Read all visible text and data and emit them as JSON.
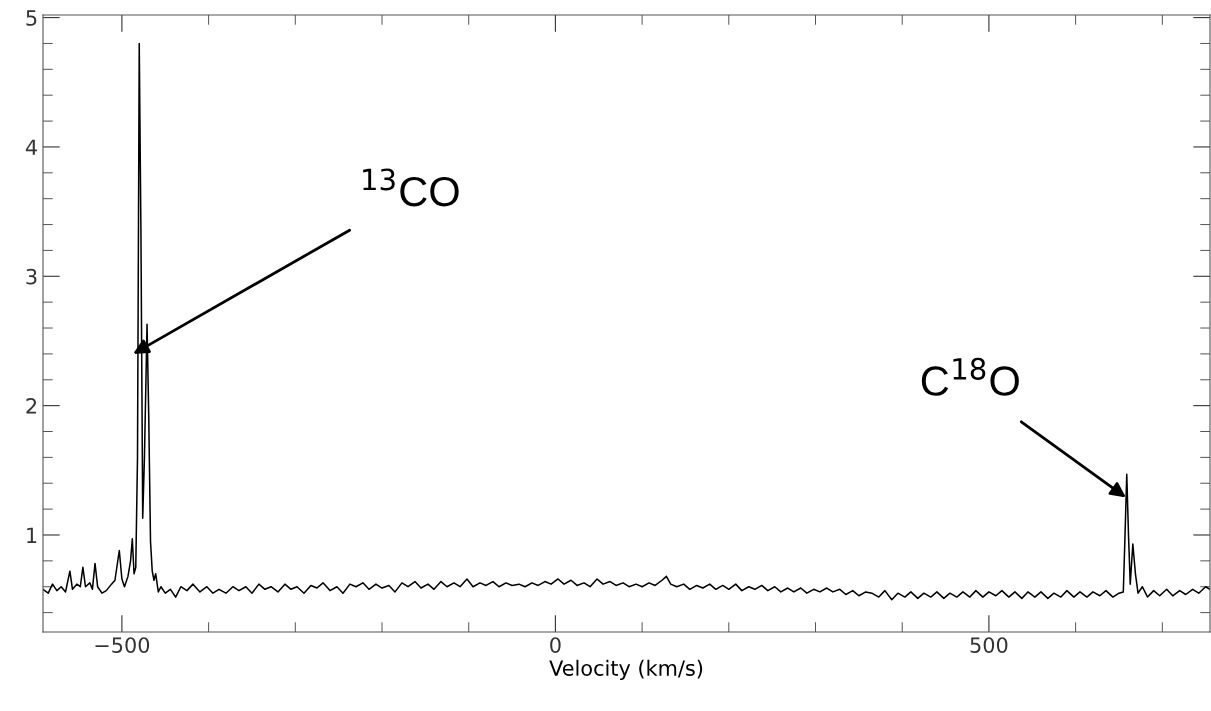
{
  "chart_data": {
    "type": "line",
    "xlabel": "Velocity (km/s)",
    "xlim": [
      -591,
      755
    ],
    "ylim": [
      0.25,
      5.02
    ],
    "xticks": [
      {
        "value": -500,
        "label": "−500"
      },
      0,
      500,
      {
        "value": -400,
        "label": null
      },
      {
        "value": -300,
        "label": null
      },
      {
        "value": -200,
        "label": null
      },
      {
        "value": -100,
        "label": null
      },
      {
        "value": 100,
        "label": null
      },
      {
        "value": 200,
        "label": null
      },
      {
        "value": 300,
        "label": null
      },
      {
        "value": 400,
        "label": null
      },
      {
        "value": 600,
        "label": null
      },
      {
        "value": 700,
        "label": null
      }
    ],
    "yticks": [
      1,
      2,
      3,
      4,
      5,
      {
        "value": 0.4,
        "label": null
      },
      {
        "value": 0.6,
        "label": null
      },
      {
        "value": 0.8,
        "label": null
      },
      {
        "value": 1.2,
        "label": null
      },
      {
        "value": 1.4,
        "label": null
      },
      {
        "value": 1.6,
        "label": null
      },
      {
        "value": 1.8,
        "label": null
      },
      {
        "value": 2.2,
        "label": null
      },
      {
        "value": 2.4,
        "label": null
      },
      {
        "value": 2.6,
        "label": null
      },
      {
        "value": 2.8,
        "label": null
      },
      {
        "value": 3.2,
        "label": null
      },
      {
        "value": 3.4,
        "label": null
      },
      {
        "value": 3.6,
        "label": null
      },
      {
        "value": 3.8,
        "label": null
      },
      {
        "value": 4.2,
        "label": null
      },
      {
        "value": 4.4,
        "label": null
      },
      {
        "value": 4.6,
        "label": null
      },
      {
        "value": 4.8,
        "label": null
      }
    ],
    "x": [
      -591,
      -585,
      -580,
      -575,
      -570,
      -565,
      -560,
      -557,
      -552,
      -548,
      -545,
      -542,
      -537,
      -534,
      -531,
      -528,
      -523,
      -518,
      -512,
      -508,
      -503,
      -500,
      -497,
      -493,
      -490,
      -488,
      -486,
      -484,
      -482,
      -480,
      -478,
      -476,
      -474,
      -471,
      -469,
      -467,
      -465,
      -463,
      -461,
      -458,
      -455,
      -450,
      -444,
      -438,
      -432,
      -425,
      -418,
      -410,
      -402,
      -395,
      -388,
      -380,
      -372,
      -365,
      -357,
      -350,
      -342,
      -335,
      -328,
      -320,
      -312,
      -305,
      -298,
      -290,
      -282,
      -275,
      -268,
      -260,
      -252,
      -245,
      -237,
      -230,
      -222,
      -215,
      -207,
      -200,
      -192,
      -185,
      -177,
      -170,
      -162,
      -155,
      -147,
      -140,
      -132,
      -125,
      -117,
      -110,
      -102,
      -95,
      -87,
      -80,
      -72,
      -65,
      -57,
      -50,
      -42,
      -35,
      -27,
      -20,
      -12,
      -5,
      3,
      10,
      18,
      25,
      33,
      40,
      48,
      55,
      63,
      70,
      78,
      85,
      93,
      100,
      108,
      115,
      123,
      128,
      133,
      140,
      148,
      155,
      163,
      170,
      178,
      185,
      193,
      200,
      208,
      215,
      223,
      230,
      238,
      245,
      253,
      260,
      268,
      275,
      283,
      290,
      298,
      305,
      313,
      320,
      328,
      335,
      343,
      350,
      358,
      365,
      373,
      380,
      388,
      395,
      403,
      410,
      418,
      425,
      433,
      440,
      448,
      455,
      463,
      470,
      478,
      485,
      493,
      500,
      508,
      515,
      523,
      530,
      538,
      545,
      553,
      560,
      568,
      575,
      583,
      590,
      598,
      605,
      613,
      620,
      628,
      635,
      643,
      650,
      655,
      657,
      659,
      661,
      663,
      666,
      669,
      672,
      677,
      683,
      690,
      697,
      705,
      712,
      720,
      727,
      735,
      742,
      750,
      755
    ],
    "series": [
      {
        "color": "#000000",
        "values": [
          0.58,
          0.55,
          0.62,
          0.57,
          0.6,
          0.56,
          0.72,
          0.58,
          0.62,
          0.6,
          0.75,
          0.6,
          0.63,
          0.58,
          0.78,
          0.6,
          0.55,
          0.57,
          0.62,
          0.65,
          0.88,
          0.66,
          0.6,
          0.68,
          0.8,
          0.97,
          0.7,
          0.75,
          1.6,
          4.8,
          3.3,
          1.13,
          1.6,
          2.63,
          1.9,
          0.95,
          0.72,
          0.65,
          0.7,
          0.56,
          0.6,
          0.55,
          0.58,
          0.52,
          0.6,
          0.57,
          0.62,
          0.56,
          0.6,
          0.55,
          0.58,
          0.55,
          0.6,
          0.57,
          0.6,
          0.55,
          0.62,
          0.58,
          0.6,
          0.56,
          0.62,
          0.58,
          0.6,
          0.55,
          0.61,
          0.59,
          0.63,
          0.57,
          0.6,
          0.55,
          0.62,
          0.6,
          0.63,
          0.58,
          0.62,
          0.59,
          0.61,
          0.56,
          0.63,
          0.6,
          0.64,
          0.59,
          0.62,
          0.58,
          0.64,
          0.6,
          0.63,
          0.6,
          0.66,
          0.6,
          0.63,
          0.61,
          0.64,
          0.6,
          0.63,
          0.61,
          0.62,
          0.6,
          0.63,
          0.61,
          0.64,
          0.62,
          0.66,
          0.62,
          0.65,
          0.61,
          0.63,
          0.6,
          0.66,
          0.62,
          0.64,
          0.61,
          0.63,
          0.6,
          0.62,
          0.6,
          0.63,
          0.61,
          0.65,
          0.68,
          0.62,
          0.6,
          0.62,
          0.58,
          0.61,
          0.59,
          0.62,
          0.58,
          0.61,
          0.58,
          0.62,
          0.57,
          0.6,
          0.58,
          0.61,
          0.57,
          0.6,
          0.56,
          0.59,
          0.56,
          0.59,
          0.55,
          0.58,
          0.56,
          0.59,
          0.56,
          0.58,
          0.54,
          0.57,
          0.53,
          0.56,
          0.55,
          0.52,
          0.57,
          0.5,
          0.55,
          0.52,
          0.56,
          0.51,
          0.55,
          0.52,
          0.56,
          0.51,
          0.55,
          0.52,
          0.56,
          0.52,
          0.57,
          0.52,
          0.56,
          0.53,
          0.57,
          0.52,
          0.56,
          0.51,
          0.56,
          0.52,
          0.56,
          0.51,
          0.55,
          0.52,
          0.57,
          0.52,
          0.56,
          0.52,
          0.56,
          0.53,
          0.57,
          0.52,
          0.55,
          0.56,
          1.0,
          1.47,
          1.0,
          0.62,
          0.93,
          0.7,
          0.55,
          0.6,
          0.52,
          0.57,
          0.53,
          0.58,
          0.53,
          0.57,
          0.54,
          0.58,
          0.55,
          0.6,
          0.58
        ]
      }
    ],
    "annotations": [
      {
        "text": "$^{13}$CO",
        "x": -487,
        "y": 2.4
      },
      {
        "text": "C$^{18}$O",
        "x": 658,
        "y": 1.29
      }
    ]
  }
}
